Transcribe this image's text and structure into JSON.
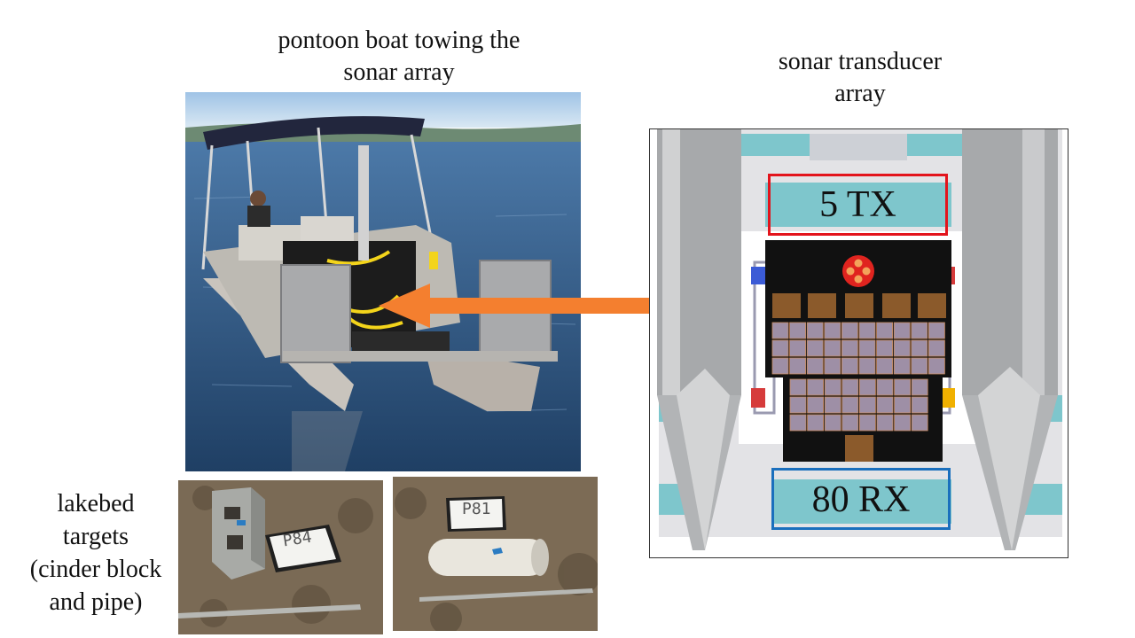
{
  "captions": {
    "boat_line1": "pontoon boat towing the",
    "boat_line2": "sonar array",
    "array_line1": "sonar transducer",
    "array_line2": "array",
    "targets_line1": "lakebed",
    "targets_line2": "targets",
    "targets_line3": "(cinder block",
    "targets_line4": "and pipe)"
  },
  "array": {
    "tx_label": "5 TX",
    "rx_label": "80 RX",
    "tx_color": "#e3141c",
    "rx_color": "#1a6fbd"
  },
  "targets": {
    "block_tag": "P84",
    "pipe_tag": "P81"
  },
  "arrow_color": "#f47f2f"
}
